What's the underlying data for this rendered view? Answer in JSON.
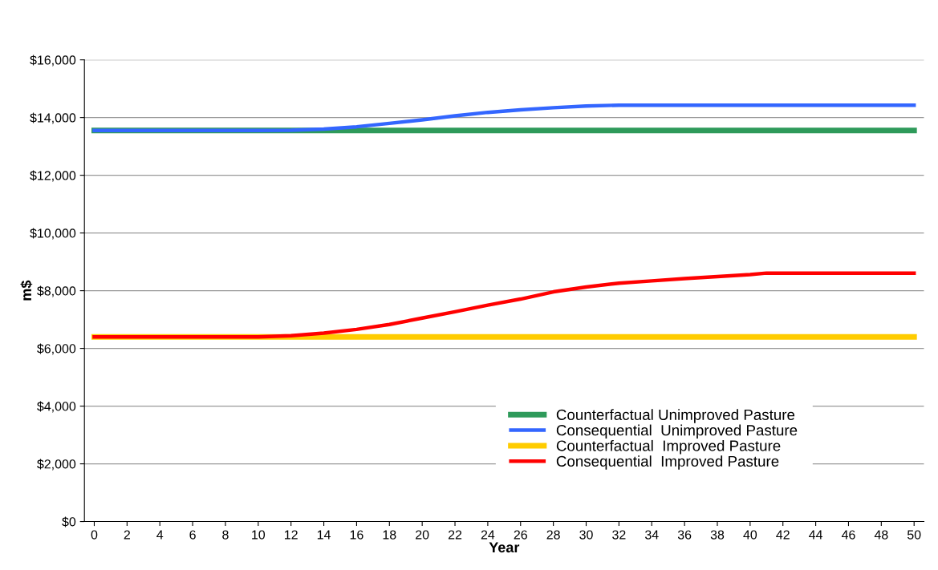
{
  "chart_data": {
    "type": "line",
    "xlabel": "Year",
    "ylabel": "m$",
    "xlim": [
      -0.6,
      50.6
    ],
    "xticks": [
      0,
      2,
      4,
      6,
      8,
      10,
      12,
      14,
      16,
      18,
      20,
      22,
      24,
      26,
      28,
      30,
      32,
      34,
      36,
      38,
      40,
      42,
      44,
      46,
      48,
      50
    ],
    "ylim": [
      0,
      16000
    ],
    "yticks": [
      {
        "value": 0,
        "label": "$0"
      },
      {
        "value": 2000,
        "label": "$2,000"
      },
      {
        "value": 4000,
        "label": "$4,000"
      },
      {
        "value": 6000,
        "label": "$6,000"
      },
      {
        "value": 8000,
        "label": "$8,000"
      },
      {
        "value": 10000,
        "label": "$10,000"
      },
      {
        "value": 12000,
        "label": "$12,000"
      },
      {
        "value": 14000,
        "label": "$14,000"
      },
      {
        "value": 16000,
        "label": "$16,000"
      }
    ],
    "grid": "y",
    "legend": "bottom right",
    "marker": "none",
    "line_style": "solid",
    "series": [
      {
        "name": "Counterfactual Unimproved Pasture",
        "color": "#2e9a5a",
        "x": [
          0,
          50
        ],
        "values": [
          13550,
          13550
        ]
      },
      {
        "name": "Consequential  Unimproved Pasture",
        "color": "#3366ff",
        "x": [
          0,
          10,
          12,
          14,
          16,
          18,
          20,
          22,
          24,
          26,
          28,
          30,
          32,
          50
        ],
        "values": [
          13550,
          13550,
          13560,
          13600,
          13680,
          13800,
          13920,
          14060,
          14180,
          14270,
          14340,
          14400,
          14430,
          14430
        ]
      },
      {
        "name": "Counterfactual  Improved Pasture",
        "color": "#ffcc00",
        "x": [
          0,
          50
        ],
        "values": [
          6400,
          6400
        ]
      },
      {
        "name": "Consequential  Improved Pasture",
        "color": "#ff0000",
        "x": [
          0,
          10,
          12,
          14,
          16,
          18,
          20,
          22,
          24,
          26,
          28,
          30,
          32,
          34,
          36,
          38,
          40,
          41,
          50
        ],
        "values": [
          6400,
          6400,
          6440,
          6530,
          6660,
          6830,
          7050,
          7270,
          7500,
          7710,
          7960,
          8130,
          8260,
          8340,
          8420,
          8490,
          8560,
          8610,
          8610
        ]
      }
    ]
  }
}
